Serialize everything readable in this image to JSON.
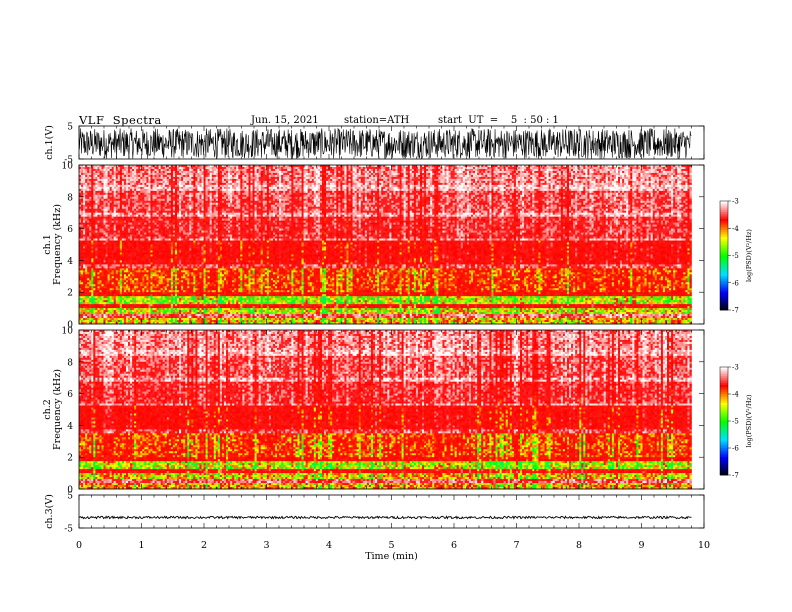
{
  "header": {
    "title": "VLF  Spectra",
    "date": "Jun. 15, 2021",
    "station": "station=ATH",
    "start": "start  UT  =    5  : 50 : 1"
  },
  "chart_data": [
    {
      "type": "line",
      "name": "ch1-waveform",
      "ylabel": "ch.1(V)",
      "ylim": [
        -5,
        5
      ],
      "yticks": [
        5,
        -5
      ],
      "xlim": [
        0,
        10
      ],
      "x_end": 9.8,
      "description_level": "noisy waveform roughly filling -4.6 to 4.6 V",
      "amplitude": 4.6,
      "baseline": -0.3
    },
    {
      "type": "heatmap",
      "name": "ch1-spectrogram",
      "ylabel": "Frequency  (kHz)",
      "channel_label": "ch.1",
      "ylim": [
        0,
        10
      ],
      "yticks": [
        0,
        2,
        4,
        6,
        8,
        10
      ],
      "xlim": [
        0,
        10
      ],
      "x_end": 9.8,
      "bands": [
        {
          "from": 0.0,
          "to": 0.4,
          "level": 0.85
        },
        {
          "from": 0.4,
          "to": 0.6,
          "level": 0.25
        },
        {
          "from": 0.6,
          "to": 1.0,
          "level": 0.9
        },
        {
          "from": 1.0,
          "to": 1.2,
          "level": 0.5
        },
        {
          "from": 1.2,
          "to": 1.7,
          "level": 0.95
        },
        {
          "from": 1.7,
          "to": 2.0,
          "level": 0.55
        },
        {
          "from": 2.0,
          "to": 3.5,
          "level": 0.7
        },
        {
          "from": 3.5,
          "to": 3.7,
          "level": 0.3
        },
        {
          "from": 3.7,
          "to": 5.2,
          "level": 0.5
        },
        {
          "from": 5.2,
          "to": 5.4,
          "level": 0.2
        },
        {
          "from": 5.4,
          "to": 6.7,
          "level": 0.35
        },
        {
          "from": 6.7,
          "to": 7.0,
          "level": 0.15
        },
        {
          "from": 7.0,
          "to": 8.4,
          "level": 0.28
        },
        {
          "from": 8.4,
          "to": 8.7,
          "level": 0.12
        },
        {
          "from": 8.7,
          "to": 10.0,
          "level": 0.2
        }
      ]
    },
    {
      "type": "heatmap",
      "name": "ch2-spectrogram",
      "ylabel": "Frequency  (kHz)",
      "channel_label": "ch.2",
      "ylim": [
        0,
        10
      ],
      "yticks": [
        0,
        2,
        4,
        6,
        8,
        10
      ],
      "xlim": [
        0,
        10
      ],
      "x_end": 9.8,
      "bands": [
        {
          "from": 0.0,
          "to": 0.4,
          "level": 0.8
        },
        {
          "from": 0.4,
          "to": 0.6,
          "level": 0.25
        },
        {
          "from": 0.6,
          "to": 1.0,
          "level": 0.85
        },
        {
          "from": 1.0,
          "to": 1.2,
          "level": 0.5
        },
        {
          "from": 1.2,
          "to": 1.7,
          "level": 0.92
        },
        {
          "from": 1.7,
          "to": 2.0,
          "level": 0.55
        },
        {
          "from": 2.0,
          "to": 3.5,
          "level": 0.7
        },
        {
          "from": 3.5,
          "to": 3.7,
          "level": 0.3
        },
        {
          "from": 3.7,
          "to": 5.2,
          "level": 0.5
        },
        {
          "from": 5.2,
          "to": 5.4,
          "level": 0.2
        },
        {
          "from": 5.4,
          "to": 6.7,
          "level": 0.35
        },
        {
          "from": 6.7,
          "to": 7.0,
          "level": 0.15
        },
        {
          "from": 7.0,
          "to": 8.4,
          "level": 0.28
        },
        {
          "from": 8.4,
          "to": 8.7,
          "level": 0.12
        },
        {
          "from": 8.7,
          "to": 10.0,
          "level": 0.2
        }
      ]
    },
    {
      "type": "line",
      "name": "ch3-waveform",
      "ylabel": "ch.3(V)",
      "ylim": [
        -5,
        5
      ],
      "yticks": [
        5,
        -5
      ],
      "xlim": [
        0,
        10
      ],
      "x_end": 9.8,
      "amplitude": 0.35,
      "baseline": -1.8
    }
  ],
  "x_axis": {
    "label": "Time  (min)",
    "ticks": [
      0,
      1,
      2,
      3,
      4,
      5,
      6,
      7,
      8,
      9,
      10
    ]
  },
  "colorbar": {
    "label": "log(PSD)(V²/Hz)",
    "range": [
      -7,
      -3
    ],
    "ticks": [
      -3,
      -4,
      -5,
      -6,
      -7
    ],
    "colors": [
      "#000000",
      "#0000ff",
      "#00e0ff",
      "#00ff00",
      "#ffff00",
      "#ff0000",
      "#ffffff"
    ]
  }
}
